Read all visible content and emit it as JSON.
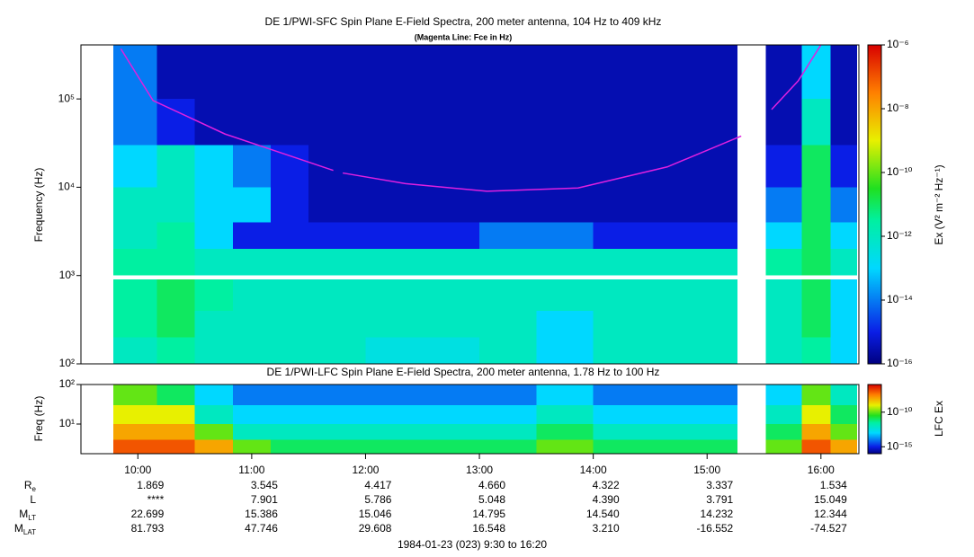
{
  "chart_data": [
    {
      "type": "heatmap",
      "title": "DE 1/PWI-SFC  Spin Plane E-Field Spectra, 200 meter antenna, 104 Hz to 409 kHz",
      "subtitle": "(Magenta Line: Fce in Hz)",
      "y_label": "Frequency (Hz)",
      "colorbar_label": "Ex (V² m⁻² Hz⁻¹)",
      "xlim": [
        570,
        980
      ],
      "ylim": [
        100,
        409000
      ],
      "y_log": true,
      "yticks": [
        {
          "value": 100,
          "label": "10²"
        },
        {
          "value": 1000,
          "label": "10³"
        },
        {
          "value": 10000,
          "label": "10⁴"
        },
        {
          "value": 100000,
          "label": "10⁵"
        }
      ],
      "clim": [
        1e-16,
        1e-06
      ],
      "c_log": true,
      "cticks": [
        {
          "value": 1e-06,
          "label": "10⁻⁶"
        },
        {
          "value": 1e-08,
          "label": "10⁻⁸"
        },
        {
          "value": 1e-10,
          "label": "10⁻¹⁰"
        },
        {
          "value": 1e-12,
          "label": "10⁻¹²"
        },
        {
          "value": 1e-14,
          "label": "10⁻¹⁴"
        },
        {
          "value": 1e-16,
          "label": "10⁻¹⁶"
        }
      ],
      "time_bins": [
        587,
        610,
        630,
        650,
        670,
        690,
        720,
        750,
        780,
        810,
        840,
        870,
        900,
        916,
        931,
        950,
        965,
        979
      ],
      "freq_bins": [
        100,
        200,
        400,
        900,
        1000,
        2000,
        4000,
        10000,
        30000,
        100000,
        409000
      ],
      "z": [
        [
          1e-12,
          3e-12,
          1e-12,
          1e-12,
          1e-12,
          1e-12,
          3e-13,
          3e-13,
          1e-12,
          1e-13,
          1e-12,
          1e-12,
          1e-12,
          null,
          1e-12,
          3e-12,
          1e-13
        ],
        [
          3e-12,
          1e-11,
          1e-12,
          1e-12,
          1e-12,
          1e-12,
          1e-12,
          1e-12,
          1e-12,
          1e-13,
          1e-12,
          1e-12,
          1e-12,
          null,
          1e-12,
          1e-11,
          1e-13
        ],
        [
          3e-12,
          1e-11,
          3e-12,
          1e-12,
          1e-12,
          1e-12,
          1e-12,
          1e-12,
          1e-12,
          1e-12,
          1e-12,
          1e-12,
          1e-12,
          null,
          1e-12,
          1e-11,
          1e-13
        ],
        [
          null,
          null,
          null,
          null,
          null,
          null,
          null,
          null,
          null,
          null,
          null,
          null,
          null,
          null,
          null,
          null,
          null
        ],
        [
          3e-12,
          3e-12,
          1e-12,
          1e-12,
          1e-12,
          1e-12,
          1e-12,
          1e-12,
          1e-12,
          1e-12,
          1e-12,
          1e-12,
          1e-12,
          null,
          3e-12,
          1e-11,
          1e-12
        ],
        [
          1e-12,
          3e-12,
          1e-13,
          1e-15,
          1e-15,
          1e-15,
          1e-15,
          1e-15,
          1e-14,
          1e-14,
          1e-15,
          1e-15,
          1e-15,
          null,
          1e-13,
          1e-11,
          1e-13
        ],
        [
          1e-12,
          1e-12,
          1e-13,
          1e-13,
          1e-15,
          3e-16,
          3e-16,
          3e-16,
          3e-16,
          3e-16,
          3e-16,
          3e-16,
          3e-16,
          null,
          1e-14,
          1e-11,
          1e-14
        ],
        [
          1e-13,
          1e-12,
          1e-13,
          1e-14,
          1e-15,
          3e-16,
          3e-16,
          3e-16,
          3e-16,
          3e-16,
          3e-16,
          3e-16,
          3e-16,
          null,
          1e-15,
          1e-11,
          1e-15
        ],
        [
          1e-14,
          1e-15,
          3e-16,
          3e-16,
          3e-16,
          3e-16,
          3e-16,
          3e-16,
          3e-16,
          3e-16,
          3e-16,
          3e-16,
          3e-16,
          null,
          3e-16,
          1e-12,
          3e-16
        ],
        [
          1e-14,
          3e-16,
          3e-16,
          3e-16,
          3e-16,
          3e-16,
          3e-16,
          3e-16,
          3e-16,
          3e-16,
          3e-16,
          3e-16,
          3e-16,
          null,
          3e-16,
          1e-13,
          3e-16
        ]
      ],
      "series": [
        {
          "name": "Fce",
          "color": "#e020e0",
          "x": [
            591,
            608,
            646,
            703,
            705,
            708,
            741,
            784,
            832,
            879,
            918,
            925,
            934,
            948,
            960
          ],
          "values": [
            370000,
            96000,
            40000,
            15500,
            null,
            14500,
            11000,
            9000,
            9800,
            17000,
            38000,
            null,
            76000,
            160000,
            410000
          ]
        }
      ]
    },
    {
      "type": "heatmap",
      "title": "DE 1/PWI-LFC  Spin Plane E-Field Spectra, 200 meter antenna, 1.78 Hz to 100 Hz",
      "y_label": "Freq (Hz)",
      "colorbar_label": "LFC Ex",
      "xlim": [
        570,
        980
      ],
      "xticks": [
        {
          "value": 600,
          "label": "10:00"
        },
        {
          "value": 660,
          "label": "11:00"
        },
        {
          "value": 720,
          "label": "12:00"
        },
        {
          "value": 780,
          "label": "13:00"
        },
        {
          "value": 840,
          "label": "14:00"
        },
        {
          "value": 900,
          "label": "15:00"
        },
        {
          "value": 960,
          "label": "16:00"
        }
      ],
      "ylim": [
        1.78,
        100
      ],
      "y_log": true,
      "yticks": [
        {
          "value": 10,
          "label": "10¹"
        },
        {
          "value": 100,
          "label": "10²"
        }
      ],
      "clim": [
        1e-16,
        1e-06
      ],
      "c_log": true,
      "cticks": [
        {
          "value": 1e-10,
          "label": "10⁻¹⁰"
        },
        {
          "value": 1e-15,
          "label": "10⁻¹⁵"
        }
      ],
      "time_bins": [
        587,
        610,
        630,
        650,
        670,
        690,
        720,
        750,
        780,
        810,
        840,
        870,
        900,
        916,
        931,
        950,
        965,
        979
      ],
      "freq_bins": [
        1.78,
        4,
        10,
        30,
        100
      ],
      "z": [
        [
          1e-07,
          1e-07,
          1e-08,
          1e-10,
          1e-11,
          1e-11,
          1e-11,
          1e-11,
          1e-11,
          1e-10,
          1e-11,
          1e-11,
          1e-11,
          null,
          1e-10,
          1e-07,
          1e-08
        ],
        [
          1e-08,
          1e-08,
          1e-10,
          1e-12,
          1e-12,
          1e-12,
          1e-12,
          1e-12,
          1e-12,
          1e-11,
          1e-12,
          1e-12,
          1e-12,
          null,
          1e-11,
          1e-08,
          1e-10
        ],
        [
          1e-09,
          1e-09,
          1e-12,
          1e-13,
          1e-13,
          1e-13,
          1e-13,
          1e-13,
          1e-13,
          1e-12,
          1e-13,
          1e-13,
          1e-13,
          null,
          1e-12,
          1e-09,
          1e-11
        ],
        [
          1e-10,
          1e-11,
          1e-13,
          1e-14,
          1e-14,
          1e-14,
          1e-14,
          1e-14,
          1e-14,
          1e-13,
          1e-14,
          1e-14,
          1e-14,
          null,
          1e-13,
          1e-10,
          1e-12
        ]
      ],
      "ephemeris": [
        {
          "label": "R",
          "sub": "e",
          "values": [
            "1.869",
            "3.545",
            "4.417",
            "4.660",
            "4.322",
            "3.337",
            "1.534"
          ]
        },
        {
          "label": "L",
          "values": [
            "****",
            "7.901",
            "5.786",
            "5.048",
            "4.390",
            "3.791",
            "15.049"
          ]
        },
        {
          "label": "M",
          "sub": "LT",
          "values": [
            "22.699",
            "15.386",
            "15.046",
            "14.795",
            "14.540",
            "14.232",
            "12.344"
          ]
        },
        {
          "label": "M",
          "sub": "LAT",
          "values": [
            "81.793",
            "47.746",
            "29.608",
            "16.548",
            "3.210",
            "-16.552",
            "-74.527"
          ]
        }
      ],
      "footer": "1984-01-23 (023) 9:30 to 16:20"
    }
  ]
}
